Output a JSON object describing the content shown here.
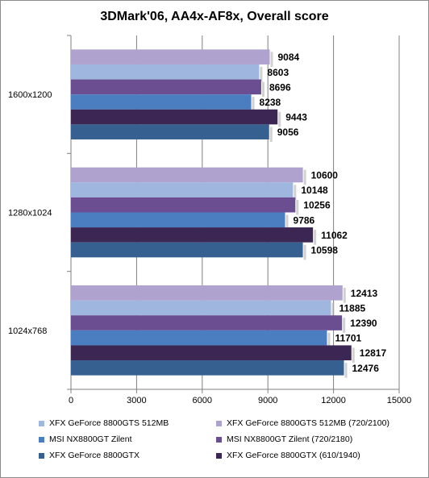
{
  "chart_data": {
    "type": "bar",
    "orientation": "horizontal",
    "title": "3DMark'06, AA4x-AF8x, Overall score",
    "xlim": [
      0,
      15000
    ],
    "xticks": [
      "0",
      "3000",
      "6000",
      "9000",
      "12000",
      "15000"
    ],
    "grid": true,
    "legend_position": "bottom",
    "categories": [
      "1600x1200",
      "1280x1024",
      "1024x768"
    ],
    "series": [
      {
        "name": "XFX GeForce 8800GTS 512MB (720/2100)",
        "color": "#b0a2cf",
        "values": [
          9084,
          10600,
          12413
        ]
      },
      {
        "name": "XFX GeForce 8800GTS 512MB",
        "color": "#9fb6de",
        "values": [
          8603,
          10148,
          11885
        ]
      },
      {
        "name": "MSI NX8800GT Zilent (720/2180)",
        "color": "#6a4e91",
        "values": [
          8696,
          10256,
          12390
        ]
      },
      {
        "name": "MSI NX8800GT Zilent",
        "color": "#4a7ec1",
        "values": [
          8238,
          9786,
          11701
        ]
      },
      {
        "name": "XFX GeForce 8800GTX (610/1940)",
        "color": "#3b2654",
        "values": [
          9443,
          11062,
          12817
        ]
      },
      {
        "name": "XFX GeForce 8800GTX",
        "color": "#35608f",
        "values": [
          9056,
          10598,
          12476
        ]
      }
    ],
    "legend_order": [
      1,
      0,
      3,
      2,
      5,
      4
    ]
  }
}
